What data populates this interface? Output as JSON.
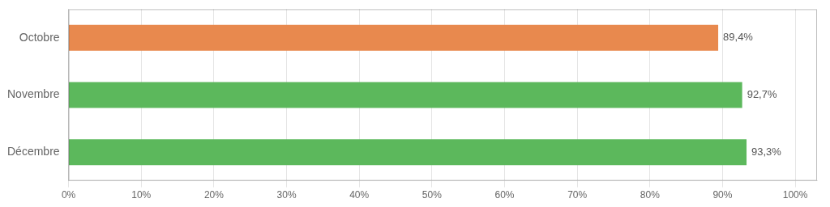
{
  "chart_data": {
    "type": "bar",
    "orientation": "horizontal",
    "categories": [
      "Octobre",
      "Novembre",
      "Décembre"
    ],
    "values": [
      89.4,
      92.7,
      93.3
    ],
    "value_labels": [
      "89,4%",
      "92,7%",
      "93,3%"
    ],
    "data_labels": true,
    "colors": [
      "#e8894e",
      "#5cb85c",
      "#5cb85c"
    ],
    "xlim": [
      0,
      103
    ],
    "xticks": [
      {
        "value": 0,
        "label": "0%"
      },
      {
        "value": 10,
        "label": "10%"
      },
      {
        "value": 20,
        "label": "20%"
      },
      {
        "value": 30,
        "label": "30%"
      },
      {
        "value": 40,
        "label": "40%"
      },
      {
        "value": 50,
        "label": "50%"
      },
      {
        "value": 60,
        "label": "60%"
      },
      {
        "value": 70,
        "label": "70%"
      },
      {
        "value": 80,
        "label": "80%"
      },
      {
        "value": 90,
        "label": "90%"
      },
      {
        "value": 100,
        "label": "100%"
      }
    ],
    "grid": true
  }
}
